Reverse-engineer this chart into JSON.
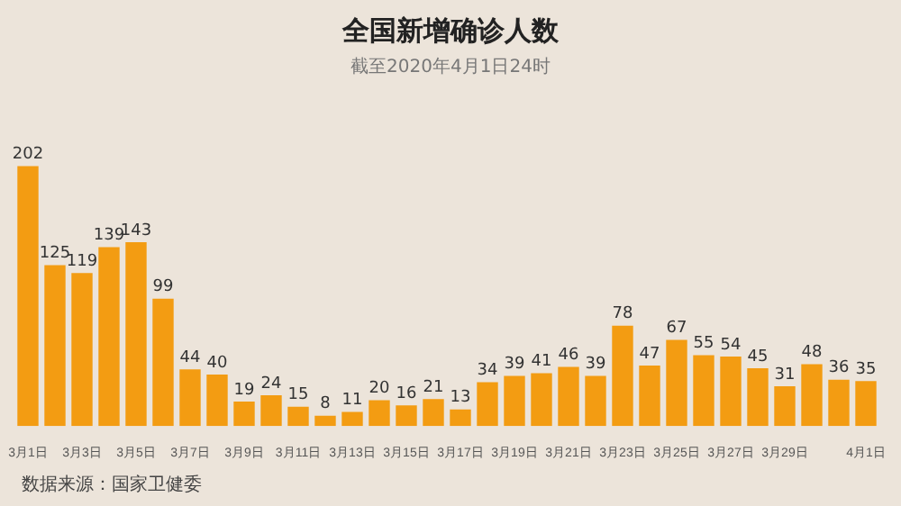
{
  "chart_data": {
    "type": "bar",
    "title": "全国新增确诊人数",
    "subtitle": "截至2020年4月1日24时",
    "categories": [
      "3月1日",
      null,
      "3月3日",
      null,
      "3月5日",
      null,
      "3月7日",
      null,
      "3月9日",
      null,
      "3月11日",
      null,
      "3月13日",
      null,
      "3月15日",
      null,
      "3月17日",
      null,
      "3月19日",
      null,
      "3月21日",
      null,
      "3月23日",
      null,
      "3月25日",
      null,
      "3月27日",
      null,
      "3月29日",
      null,
      null,
      "4月1日"
    ],
    "values": [
      202,
      125,
      119,
      139,
      143,
      99,
      44,
      40,
      19,
      24,
      15,
      8,
      11,
      20,
      16,
      21,
      13,
      34,
      39,
      41,
      46,
      39,
      78,
      47,
      67,
      55,
      54,
      45,
      31,
      48,
      36,
      35
    ],
    "color": "#f39c12",
    "data_labels": true,
    "grid": false,
    "legend": false,
    "annotations": [
      "数据来源：国家卫健委"
    ]
  }
}
